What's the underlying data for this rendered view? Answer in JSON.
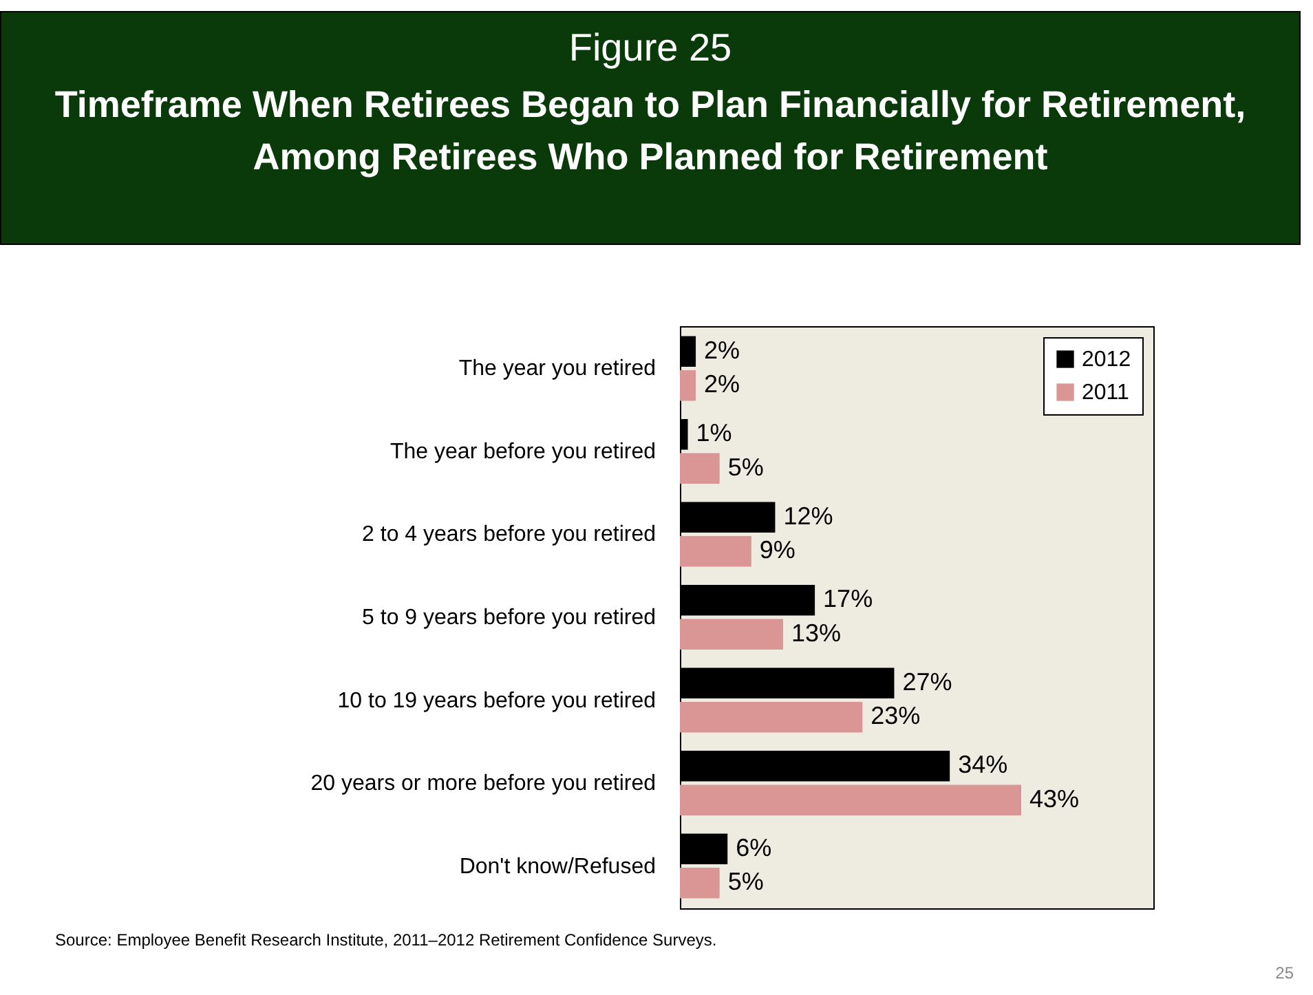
{
  "chart_data": {
    "type": "bar",
    "orientation": "horizontal",
    "title": "Figure 25",
    "subtitle": "Timeframe When Retirees Began to Plan Financially for Retirement, Among Retirees Who Planned for Retirement",
    "categories": [
      "The year you retired",
      "The year before you retired",
      "2 to 4 years before you retired",
      "5 to 9 years before you retired",
      "10 to 19 years before you retired",
      "20 years or more before you retired",
      "Don't know/Refused"
    ],
    "series": [
      {
        "name": "2012",
        "color": "#000000",
        "values": [
          2,
          1,
          12,
          17,
          27,
          34,
          6
        ],
        "value_labels": [
          "2%",
          "1%",
          "12%",
          "17%",
          "27%",
          "34%",
          "6%"
        ]
      },
      {
        "name": "2011",
        "color": "#d99694",
        "values": [
          2,
          5,
          9,
          13,
          23,
          43,
          5
        ],
        "value_labels": [
          "2%",
          "5%",
          "9%",
          "13%",
          "23%",
          "43%",
          "5%"
        ]
      }
    ],
    "legend": "top right",
    "grid": false,
    "annotations": [
      "Source:  Employee Benefit Research Institute, 2011–2012 Retirement Confidence Surveys.",
      "25"
    ]
  }
}
